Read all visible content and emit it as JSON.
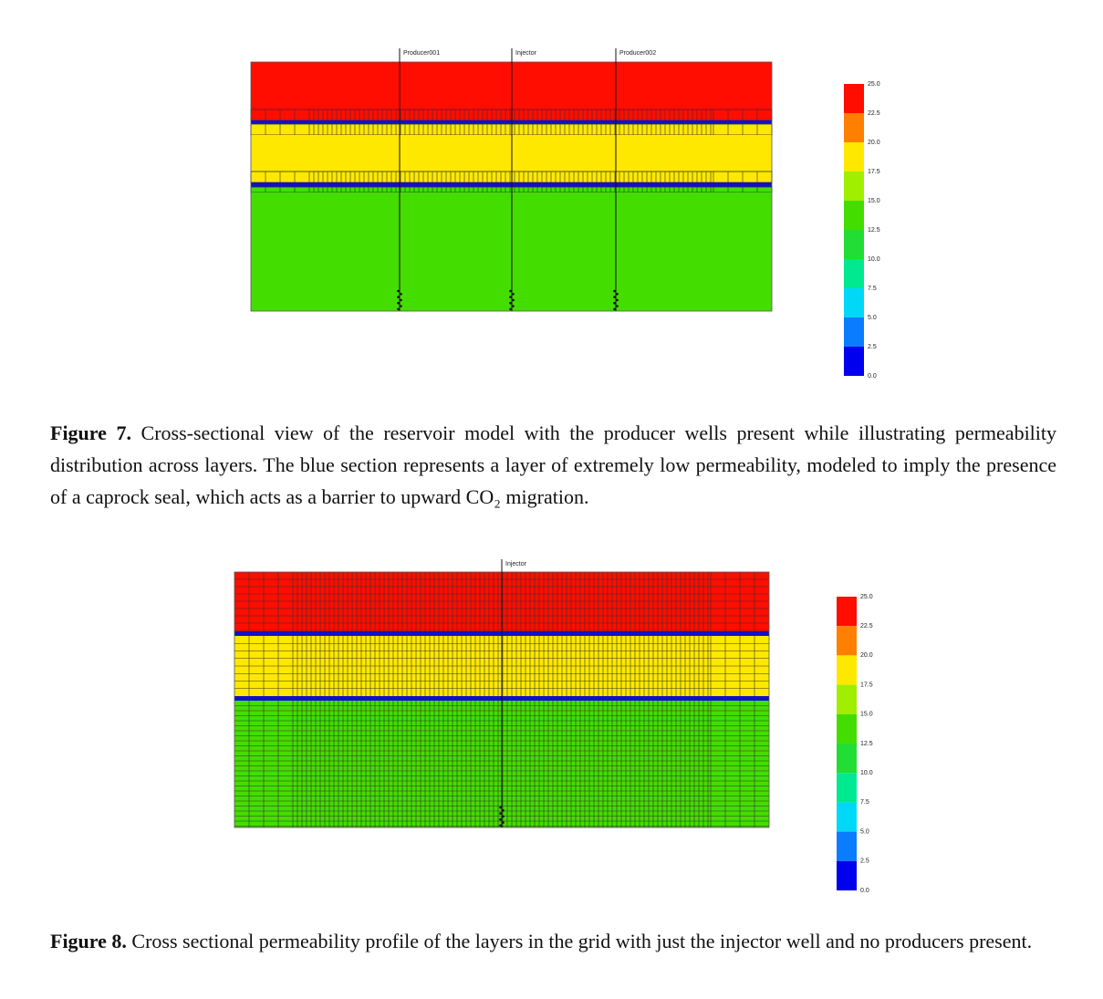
{
  "figures": [
    {
      "wells": [
        "Producer001",
        "Injector",
        "Producer002"
      ],
      "colorbar": {
        "labels": [
          "25.0",
          "22.5",
          "20.0",
          "17.5",
          "15.0",
          "12.5",
          "10.0",
          "7.5",
          "5.0",
          "2.5",
          "0.0"
        ],
        "colors": [
          "#ff0d00",
          "#ff7f00",
          "#ffe800",
          "#a0ee00",
          "#44dd00",
          "#22dd33",
          "#00e890",
          "#00d8f8",
          "#0a7cff",
          "#0000ee"
        ]
      },
      "caption": {
        "label": "Figure 7.",
        "text": "Cross-sectional view of the reservoir model with the producer wells present while illustrating permeability distribution across layers. The blue section represents a layer of extremely low permeability, modeled to imply the presence of a caprock seal, which acts as a barrier to upward CO₂ migration."
      }
    },
    {
      "wells": [
        "Injector"
      ],
      "colorbar": {
        "labels": [
          "25.0",
          "22.5",
          "20.0",
          "17.5",
          "15.0",
          "12.5",
          "10.0",
          "7.5",
          "5.0",
          "2.5",
          "0.0"
        ],
        "colors": [
          "#ff0d00",
          "#ff7f00",
          "#ffe800",
          "#a0ee00",
          "#44dd00",
          "#22dd33",
          "#00e890",
          "#00d8f8",
          "#0a7cff",
          "#0000ee"
        ]
      },
      "caption": {
        "label": "Figure 8.",
        "text": "Cross sectional permeability profile of the layers in the grid with just the injector well and no producers present."
      }
    }
  ]
}
